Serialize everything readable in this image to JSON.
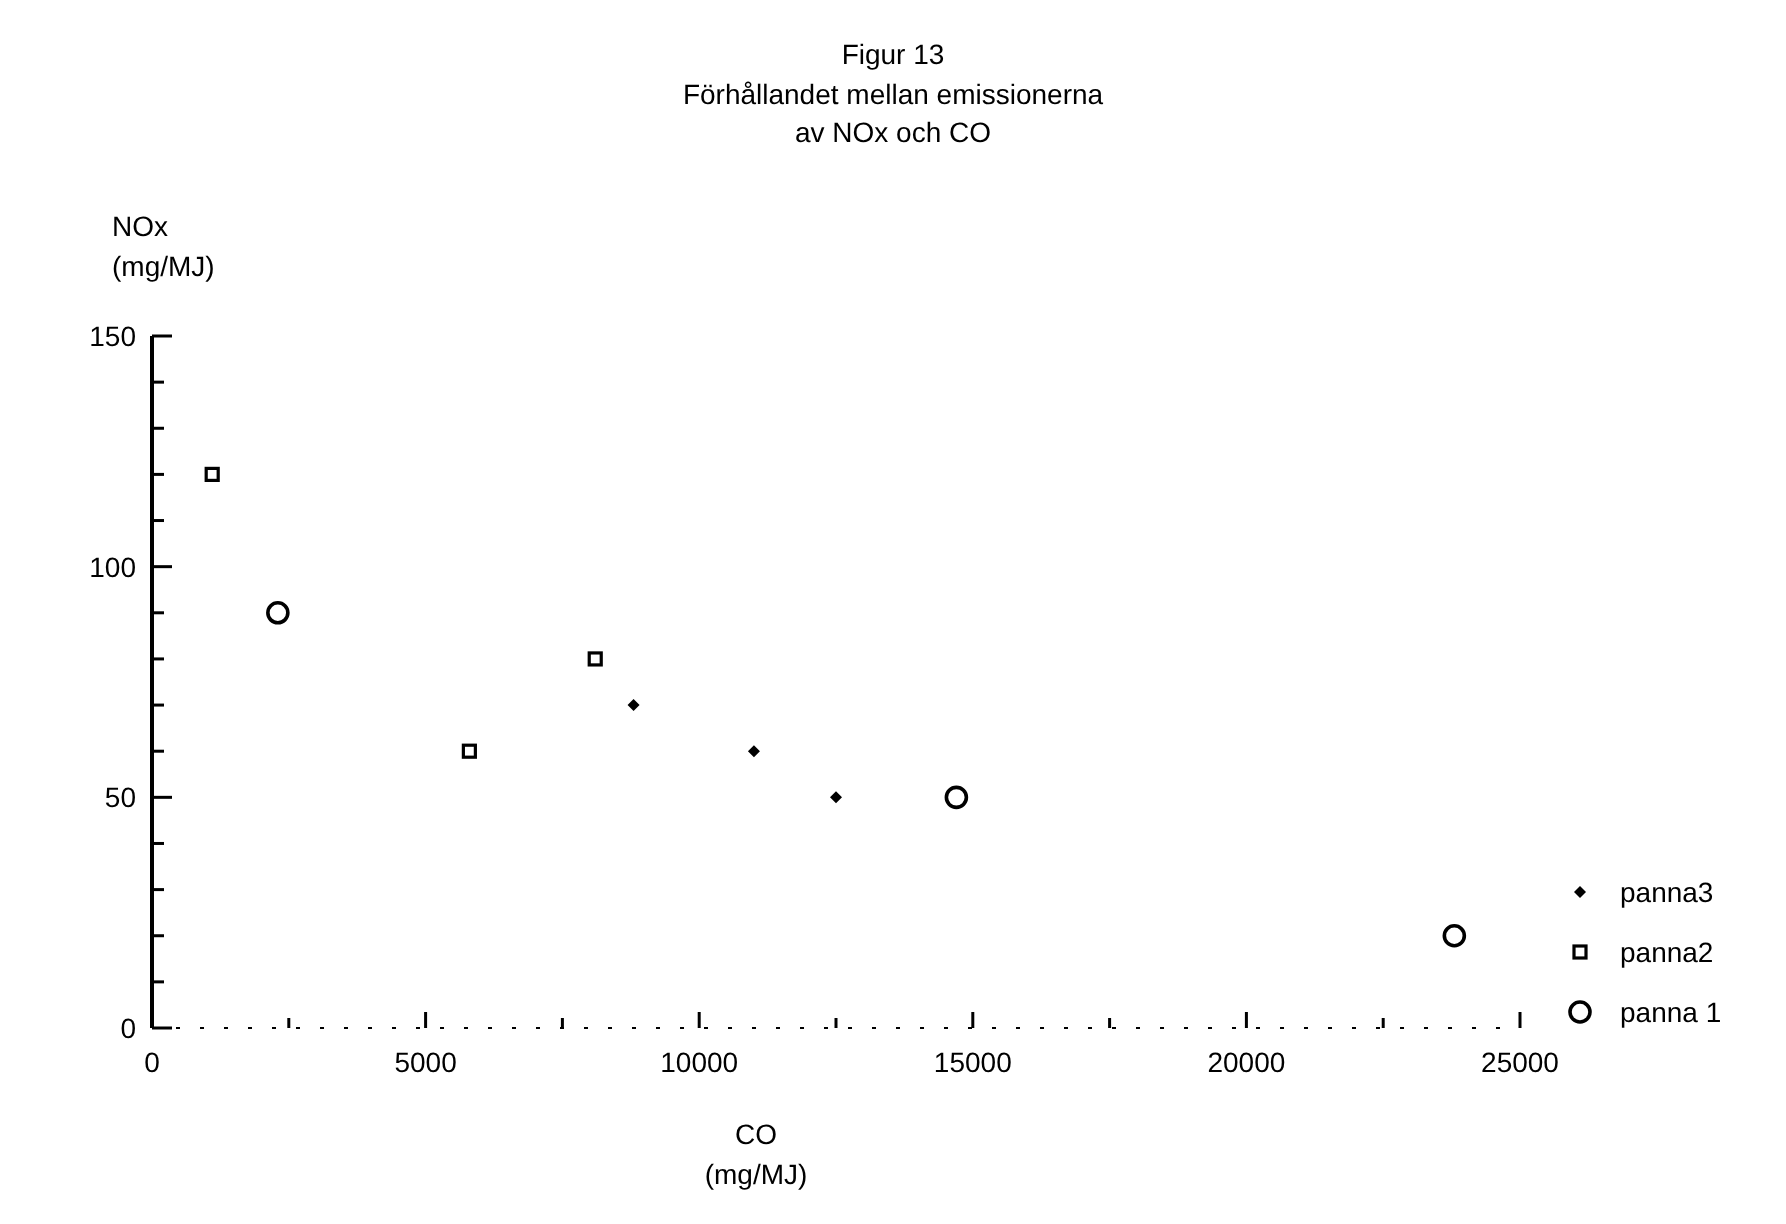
{
  "chart_data": {
    "type": "scatter",
    "title": "Figur 13",
    "subtitle": "Förhållandet mellan emissionerna\nav NOx och CO",
    "xlabel": "CO\n(mg/MJ)",
    "ylabel": "NOx\n(mg/MJ)",
    "xlim": [
      0,
      25000
    ],
    "xticks": [
      0,
      {
        "value": 2500,
        "label": null
      },
      5000,
      {
        "value": 7500,
        "label": null
      },
      10000,
      {
        "value": 12500,
        "label": null
      },
      15000,
      {
        "value": 17500,
        "label": null
      },
      20000,
      {
        "value": 22500,
        "label": null
      },
      25000
    ],
    "ylim": [
      0,
      150
    ],
    "yticks": [
      0,
      {
        "value": 10,
        "label": null
      },
      {
        "value": 20,
        "label": null
      },
      {
        "value": 30,
        "label": null
      },
      {
        "value": 40,
        "label": null
      },
      50,
      {
        "value": 60,
        "label": null
      },
      {
        "value": 70,
        "label": null
      },
      {
        "value": 80,
        "label": null
      },
      {
        "value": 90,
        "label": null
      },
      100,
      {
        "value": 110,
        "label": null
      },
      {
        "value": 120,
        "label": null
      },
      {
        "value": 130,
        "label": null
      },
      {
        "value": 140,
        "label": null
      },
      150
    ],
    "grid": false,
    "legend": "right",
    "series": [
      {
        "name": "panna3",
        "color": "#000000",
        "marker": "diamond",
        "x": [
          8800,
          11000,
          12500
        ],
        "values": [
          70,
          60,
          50
        ]
      },
      {
        "name": "panna2",
        "color": "#000000",
        "marker": "square",
        "x": [
          1100,
          5800,
          8100
        ],
        "values": [
          120,
          60,
          80
        ]
      },
      {
        "name": "panna 1",
        "color": "#000000",
        "marker": "circle",
        "x": [
          2300,
          14700,
          23800
        ],
        "values": [
          90,
          50,
          20
        ]
      }
    ]
  }
}
